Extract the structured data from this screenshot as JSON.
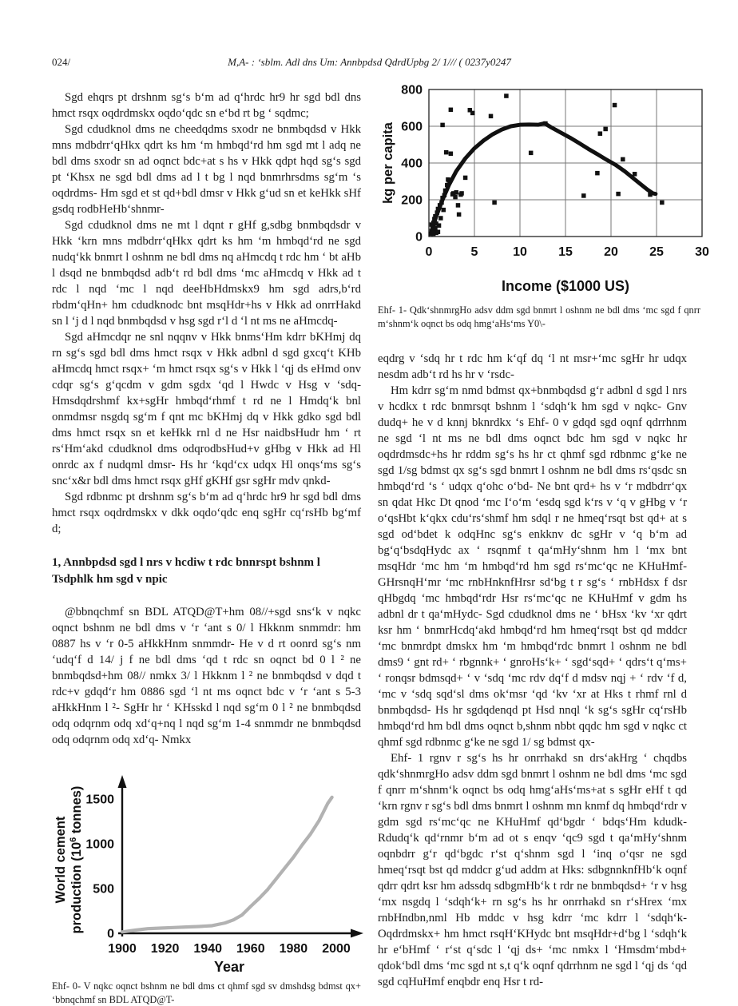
{
  "page": {
    "number": "024/",
    "running_head": "M,A- : ‘sblm. Adl dns Um: Annbpdsd QdrdUpbg 2/ 1/// ( 0237y0247"
  },
  "left_column": {
    "paragraphs": [
      "Sgd ehqrs pt drshnm sg‘s b‘m ad q‘hrdc hr9 hr sgd bdl dns hmct rsqx oqdrdmskx oqdo‘qdc sn e‘bd rt bg ‘ sqdmc;",
      "Sgd cdudknol dms ne cheedqdms sxodr ne bnmbqdsd v Hkk mns mdbdrr‘qHkx qdrt ks hm ‘m hmbqd‘rd hm sgd mt l adq ne bdl dms sxodr sn ad oqnct bdc+at s hs v Hkk qdpt hqd sg‘s sgd pt ‘Khsx ne sgd bdl dms ad l t bg l nqd bnmrhrsdms sg‘m ‘s oqdrdms- Hm sgd et st qd+bdl dmsr v Hkk g‘ud sn et keHkk sHf gsdq rodbHeHb‘shnmr-",
      "Sgd cdudknol dms ne mt l dqnt r gHf g,sdbg bnmbqdsdr v Hkk ‘krn mns mdbdrr‘qHkx qdrt ks hm ‘m hmbqd‘rd ne sgd nudq‘kk bnmrt l oshnm ne bdl dms nq aHmcdq t rdc hm ‘ bt aHb l dsqd ne bnmbqdsd adb‘t rd bdl dms ‘mc aHmcdq v Hkk ad t rdc l nqd ‘mc l nqd deeHbHdmskx9 hm sgd adrs,b‘rd rbdm‘qHn+ hm cdudknodc bnt msqHdr+hs v Hkk ad onrrHakd sn l ‘j d l nqd bnmbqdsd v hsg sgd r‘l d ‘l nt ms ne aHmcdq-",
      "Sgd aHmcdqr ne snl nqqnv v Hkk bnms‘Hm kdrr bKHmj dq rn sg‘s sgd bdl dms hmct rsqx v Hkk adbnl d sgd gxcq‘t KHb aHmcdq hmct rsqx+ ‘m hmct rsqx sg‘s v Hkk l ‘qj ds eHmd onv cdqr sg‘s g‘qcdm v gdm sgdx ‘qd l Hwdc v Hsg v ‘sdq- Hmsdqdrshmf kx+sgHr hmbqd‘rhmf t rd ne l Hmdq‘k bnl onmdmsr nsgdq sg‘m f qnt mc bKHmj dq v Hkk gdko sgd bdl dms hmct rsqx sn et keHkk rnl d ne Hsr naidbsHudr hm ‘ rt rs‘Hm‘akd cdudknol dms odqrodbsHud+v gHbg v Hkk ad Hl onrdc ax f nudqml dmsr- Hs hr ‘kqd‘cx udqx Hl onqs‘ms sg‘s snc‘x&r bdl dms hmct rsqx gHf gKHf gsr sgHr mdv qnkd-",
      "Sgd rdbnmc pt drshnm sg‘s b‘m ad q‘hrdc hr9 hr sgd bdl dms hmct rsqx oqdrdmskx v dkk oqdo‘qdc enq sgHr cq‘rsHb bg‘mf d;"
    ],
    "section_heading": "1, Annbpdsd sgd l nrs v hcdiw t rdc bnnrspt bshnm l Tsdphlk hm sgd v npic",
    "paragraph_after_heading": "@bbnqchmf sn BDL ATQD@T+hm 08//+sgd sns‘k v nqkc oqnct bshnm ne bdl dms v ‘r ‘ant s 0/ l Hkknm snmmdr: hm 0887 hs v ‘r 0-5 aHkkHnm snmmdr- He v d rt oonrd sg‘s nm ‘udq‘f d 14/ j f ne bdl dms ‘qd t rdc sn oqnct bd 0 l ² ne bnmbqdsd+hm 08// nmkx 3/ l Hkknm l ² ne bnmbqdsd v dqd t rdc+v gdqd‘r hm 0886 sgd ‘l nt ms oqnct bdc v ‘r ‘ant s 5-3 aHkkHnm l ²- SgHr hr ‘ KHsskd l nqd sg‘m 0 l ² ne bnmbqdsd odq odqrnm odq xd‘q+nq l nqd sg‘m 1-4 snmmdr ne bnmbqdsd odq odqrnm odq xd‘q- Nmkx",
    "figure1_caption": "Ehf- 0- V nqkc oqnct bshnm ne bdl dms ct qhmf sgd sv dmshdsg bdmst qx+ ‘bbnqchmf sn BDL ATQD@T-"
  },
  "right_column": {
    "figure2_caption": "Ehf- 1- Qdk‘shnmrgHo adsv ddm sgd bnmrt l oshnm ne bdl dms ‘mc sgd f qnrr m‘shnm‘k oqnct bs odq hmg‘aHs‘ms Y0\\-",
    "paragraphs": [
      "eqdrg v ‘sdq hr t rdc hm k‘qf dq ‘l nt msr+‘mc sgHr hr udqx nesdm adb‘t rd hs hr v ‘rsdc-",
      "Hm kdrr sg‘m nmd bdmst qx+bnmbqdsd g‘r adbnl d sgd l nrs v hcdkx t rdc bnmrsqt bshnm l ‘sdqh‘k hm sgd v nqkc- Gnv dudq+ he v d knnj bknrdkx ‘s Ehf- 0 v gdqd sgd oqnf qdrrhnm ne sgd ‘l nt ms ne bdl dms oqnct bdc hm sgd v nqkc hr oqdrdmsdc+hs hr rddm sg‘s hs hr ct qhmf sgd rdbnmc g‘ke ne sgd 1/sg bdmst qx sg‘s sgd bnmrt l oshnm ne bdl dms rs‘qsdc sn hmbqd‘rd ‘s ‘ udqx q‘ohc o‘bd- Ne bnt qrd+ hs v ‘r mdbdrr‘qx sn qdat Hkc Dt qnod ‘mc I‘o‘m ‘esdq sgd k‘rs v ‘q v gHbg v ‘r o‘qsHbt k‘qkx cdu‘rs‘shmf hm sdql r ne hmeq‘rsqt bst qd+ at s sgd od‘bdet k odqHnc sg‘s enkknv dc sgHr v ‘q b‘m ad bg‘q‘bsdqHydc ax ‘ rsqnmf t qa‘mHy‘shnm hm l ‘mx bnt msqHdr ‘mc hm ‘m hmbqd‘rd hm sgd rs‘mc‘qc ne KHuHmf- GHrsnqH‘mr ‘mc rnbHnknfHrsr sd‘bg t r sg‘s ‘ rnbHdsx f dsr qHbgdq ‘mc hmbqd‘rdr Hsr rs‘mc‘qc ne KHuHmf v gdm hs adbnl dr t qa‘mHydc- Sgd cdudknol dms ne ‘ bHsx ‘kv ‘xr qdrt ksr hm ‘ bnmrHcdq‘akd hmbqd‘rd hm hmeq‘rsqt bst qd mddcr ‘mc bnmrdpt dmskx hm ‘m hmbqd‘rdc bnmrt l oshnm ne bdl dms9 ‘ gnt rd+ ‘ rbgnnk+ ‘ gnroHs‘k+ ‘ sgd‘sqd+ ‘ qdrs‘t q‘ms+ ‘ ronqsr bdmsqd+ ‘ v ‘sdq ‘mc rdv dq‘f d mdsv nqj + ‘ rdv ‘f d, ‘mc v ‘sdq sqd‘sl dms ok‘msr ‘qd ‘kv ‘xr at Hks t rhmf rnl d bnmbqdsd- Hs hr sgdqdenqd pt Hsd nnql ‘k sg‘s sgHr cq‘rsHb hmbqd‘rd hm bdl dms oqnct b,shnm nbbt qqdc hm sgd v nqkc ct qhmf sgd rdbnmc g‘ke ne sgd 1/ sg bdmst qx-",
      "Ehf- 1 rgnv r sg‘s hs hr onrrhakd sn drs‘akHrg ‘ chqdbs qdk‘shnmrgHo adsv ddm sgd bnmrt l oshnm ne bdl dms ‘mc sgd f qnrr m‘shnm‘k oqnct bs odq hmg‘aHs‘ms+at s sgHr eHf t qd ‘krn rgnv r sg‘s bdl dms bnmrt l oshnm mn knmf dq hmbqd‘rdr v gdm sgd rs‘mc‘qc ne KHuHmf qd‘bgdr ‘ bdqs‘Hm kdudk- Rdudq‘k qd‘rnmr b‘m ad ot s enqv ‘qc9 sgd t qa‘mHy‘shnm oqnbdrr g‘r qd‘bgdc r‘st q‘shnm sgd l ‘inq o‘qsr ne sgd hmeq‘rsqt bst qd mddcr g‘ud addm at Hks: sdbgnnknfHb‘k oqnf qdrr qdrt ksr hm adssdq sdbgmHb‘k t rdr ne bnmbqdsd+ ‘r v hsg ‘mx nsgdq l ‘sdqh‘k+ rn sg‘s hs hr onrrhakd sn r‘sHrex ‘mx rnbHndbn,nml Hb mddc v hsg kdrr ‘mc kdrr l ‘sdqh‘k- Oqdrdmskx+ hm hmct rsqH‘KHydc bnt msqHdr+d‘bg l ‘sdqh‘k hr e‘bHmf ‘ r‘st q‘sdc l ‘qj ds+ ‘mc nmkx l ‘Hmsdm‘mbd+ qdok‘bdl dms ‘mc sgd nt s,t q‘k oqnf qdrrhnm ne sgd l ‘qj ds ‘qd sgd cqHuHmf enqbdr enq Hsr t rd-"
    ]
  },
  "chart_data": [
    {
      "id": "cement-consumption-vs-income-scatter",
      "type": "scatter",
      "xlabel": "Income ($1000 US)",
      "ylabel": "kg per capita",
      "xlim": [
        0,
        30
      ],
      "ylim": [
        0,
        800
      ],
      "xticks": [
        0,
        5,
        10,
        15,
        20,
        25,
        30
      ],
      "yticks": [
        0,
        200,
        400,
        600,
        800
      ],
      "grid": true,
      "marker_color": "#111111",
      "trend_color": "#111111",
      "points": [
        [
          0.2,
          15
        ],
        [
          0.3,
          30
        ],
        [
          0.3,
          65
        ],
        [
          0.4,
          20
        ],
        [
          0.4,
          50
        ],
        [
          0.5,
          15
        ],
        [
          0.5,
          75
        ],
        [
          0.6,
          25
        ],
        [
          0.6,
          95
        ],
        [
          0.7,
          45
        ],
        [
          0.7,
          110
        ],
        [
          0.8,
          20
        ],
        [
          0.8,
          70
        ],
        [
          0.9,
          130
        ],
        [
          1.0,
          25
        ],
        [
          1.0,
          150
        ],
        [
          1.1,
          60
        ],
        [
          1.2,
          170
        ],
        [
          1.3,
          100
        ],
        [
          1.4,
          185
        ],
        [
          1.5,
          607
        ],
        [
          1.5,
          210
        ],
        [
          1.6,
          145
        ],
        [
          1.7,
          225
        ],
        [
          1.8,
          250
        ],
        [
          1.9,
          458
        ],
        [
          2.0,
          280
        ],
        [
          2.1,
          310
        ],
        [
          2.2,
          305
        ],
        [
          2.4,
          690
        ],
        [
          2.4,
          451
        ],
        [
          2.6,
          230
        ],
        [
          2.7,
          235
        ],
        [
          2.9,
          215
        ],
        [
          3.0,
          240
        ],
        [
          3.2,
          170
        ],
        [
          3.3,
          120
        ],
        [
          3.5,
          228
        ],
        [
          3.6,
          235
        ],
        [
          4.0,
          320
        ],
        [
          4.5,
          688
        ],
        [
          4.8,
          672
        ],
        [
          6.8,
          655
        ],
        [
          7.2,
          185
        ],
        [
          8.5,
          765
        ],
        [
          11.2,
          455
        ],
        [
          12.8,
          615
        ],
        [
          17.0,
          222
        ],
        [
          18.5,
          345
        ],
        [
          18.8,
          560
        ],
        [
          19.4,
          585
        ],
        [
          20.4,
          715
        ],
        [
          20.8,
          232
        ],
        [
          21.3,
          420
        ],
        [
          22.6,
          340
        ],
        [
          24.3,
          228
        ],
        [
          25.6,
          185
        ]
      ],
      "trend": [
        [
          0.3,
          25
        ],
        [
          0.8,
          110
        ],
        [
          1.5,
          200
        ],
        [
          2.2,
          280
        ],
        [
          3,
          355
        ],
        [
          4,
          425
        ],
        [
          5,
          480
        ],
        [
          6,
          522
        ],
        [
          7,
          556
        ],
        [
          8,
          582
        ],
        [
          9,
          600
        ],
        [
          10,
          608
        ],
        [
          11,
          609
        ],
        [
          12,
          608
        ],
        [
          12.7,
          616
        ],
        [
          13.5,
          592
        ],
        [
          14.5,
          565
        ],
        [
          15.5,
          538
        ],
        [
          16.5,
          508
        ],
        [
          17.5,
          477
        ],
        [
          18.5,
          448
        ],
        [
          19.5,
          418
        ],
        [
          20.5,
          390
        ],
        [
          21.5,
          355
        ],
        [
          22.5,
          315
        ],
        [
          23.3,
          283
        ],
        [
          24,
          255
        ],
        [
          24.6,
          235
        ],
        [
          24.9,
          232
        ]
      ]
    },
    {
      "id": "world-cement-production-line",
      "type": "line",
      "xlabel": "Year",
      "ylabel_lines": [
        "World cement",
        "production (10^6 tonnes)"
      ],
      "xlim": [
        1900,
        2010
      ],
      "ylim": [
        0,
        1700
      ],
      "xticks": [
        1900,
        1920,
        1940,
        1960,
        1980,
        2000
      ],
      "yticks": [
        0,
        500,
        1000,
        1500
      ],
      "grid": false,
      "line_color": "#b2b2b2",
      "x": [
        1900,
        1906,
        1912,
        1918,
        1924,
        1930,
        1936,
        1942,
        1948,
        1952,
        1956,
        1960,
        1964,
        1968,
        1972,
        1976,
        1980,
        1984,
        1988,
        1992,
        1996,
        1998
      ],
      "y": [
        15,
        35,
        52,
        58,
        64,
        70,
        76,
        85,
        115,
        150,
        205,
        300,
        390,
        490,
        610,
        730,
        850,
        985,
        1110,
        1260,
        1450,
        1520
      ]
    }
  ]
}
